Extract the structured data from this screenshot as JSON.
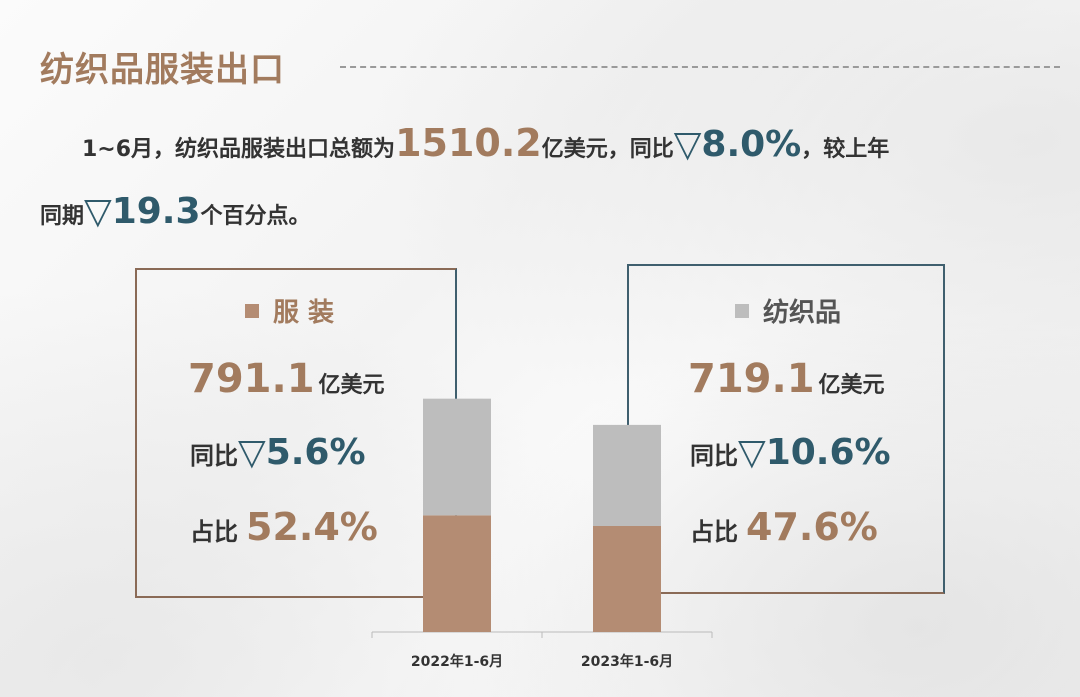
{
  "title": "纺织品服装出口",
  "summary": {
    "line1_prefix": "1~6月，纺织品服装出口总额为",
    "total": "1510.2",
    "total_unit": "亿美元，同比",
    "triangle": "▽",
    "total_yoy": "8.0%",
    "line1_suffix": "，较上年",
    "line2_prefix": "同期",
    "change": "19.3",
    "line2_suffix": "个百分点。"
  },
  "apparel": {
    "legend": "服 装",
    "value": "791.1",
    "unit": "亿美元",
    "yoy_label": "同比",
    "yoy": "5.6%",
    "share_label": "占比",
    "share": "52.4%"
  },
  "textiles": {
    "legend": "纺织品",
    "value": "719.1",
    "unit": "亿美元",
    "yoy_label": "同比",
    "yoy": "10.6%",
    "share_label": "占比",
    "share": "47.6%"
  },
  "colors": {
    "apparel": "#b48c73",
    "textiles": "#bdbdbd",
    "title": "#a27b5e",
    "teal": "#2f5a6b"
  },
  "chart_data": {
    "type": "bar",
    "stacked": true,
    "categories": [
      "2022年1-6月",
      "2023年1-6月"
    ],
    "series": [
      {
        "name": "服装",
        "values": [
          52.5,
          47.7
        ]
      },
      {
        "name": "纺织品",
        "values": [
          52.5,
          45.5
        ]
      }
    ],
    "ylim": [
      0,
      108
    ]
  }
}
